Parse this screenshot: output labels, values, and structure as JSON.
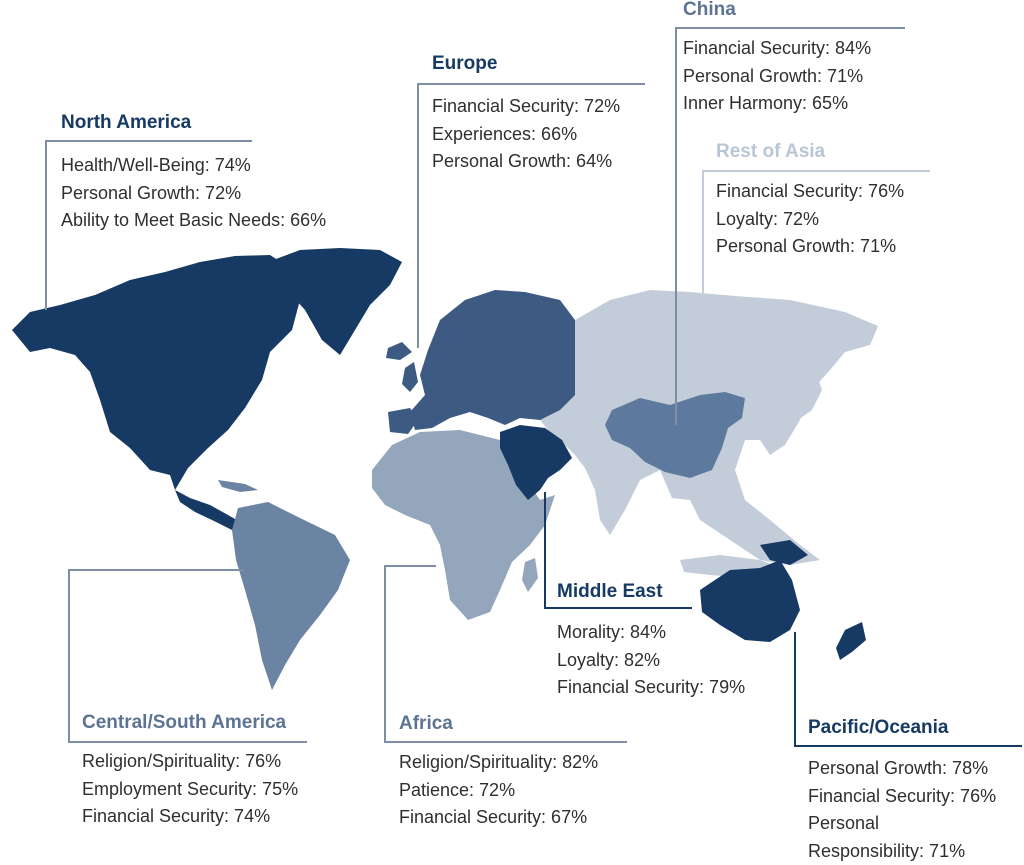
{
  "colors": {
    "north_america": "#163a63",
    "europe": "#3d5a82",
    "china": "#5d7a9e",
    "rest_of_asia": "#c3cdd9",
    "middle_east": "#163a63",
    "africa": "#94a6bb",
    "central_south_america": "#6c84a3",
    "pacific_oceania": "#163a63",
    "leader_line": "#7d8ea5"
  },
  "regions": {
    "north_america": {
      "title": "North America",
      "items": [
        "Health/Well-Being: 74%",
        "Personal Growth: 72%",
        "Ability to Meet Basic Needs: 66%"
      ]
    },
    "europe": {
      "title": "Europe",
      "items": [
        "Financial Security: 72%",
        "Experiences: 66%",
        "Personal Growth: 64%"
      ]
    },
    "china": {
      "title": "China",
      "items": [
        "Financial Security: 84%",
        "Personal Growth: 71%",
        "Inner Harmony: 65%"
      ]
    },
    "rest_of_asia": {
      "title": "Rest of Asia",
      "items": [
        "Financial Security: 76%",
        "Loyalty: 72%",
        "Personal Growth: 71%"
      ]
    },
    "middle_east": {
      "title": "Middle East",
      "items": [
        "Morality: 84%",
        "Loyalty: 82%",
        "Financial Security: 79%"
      ]
    },
    "central_south_america": {
      "title": "Central/South America",
      "items": [
        "Religion/Spirituality: 76%",
        "Employment Security: 75%",
        "Financial Security: 74%"
      ]
    },
    "africa": {
      "title": "Africa",
      "items": [
        "Religion/Spirituality: 82%",
        "Patience: 72%",
        "Financial Security: 67%"
      ]
    },
    "pacific_oceania": {
      "title": "Pacific/Oceania",
      "items": [
        "Personal Growth: 78%",
        "Financial Security: 76%",
        "Personal",
        "Responsibility: 71%"
      ]
    }
  }
}
